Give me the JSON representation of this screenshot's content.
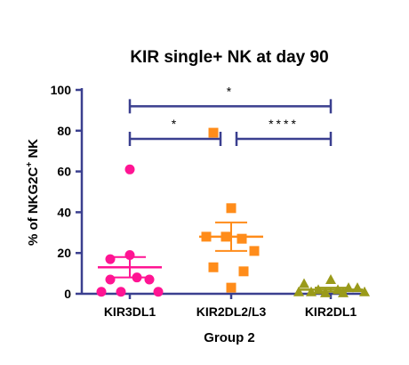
{
  "chart_data": {
    "type": "scatter",
    "title": "KIR single+ NK  at day 90",
    "xlabel": "Group 2",
    "ylabel": "% of NKG2C",
    "ylabel_sup": "+",
    "ylabel_suffix": " NK",
    "ylim": [
      0,
      100
    ],
    "yticks": [
      0,
      20,
      40,
      60,
      80,
      100
    ],
    "grid": false,
    "categories": [
      "KIR3DL1",
      "KIR2DL2/L3",
      "KIR2DL1"
    ],
    "series": [
      {
        "category": "KIR3DL1",
        "marker": "circle",
        "color": "#ff1493",
        "values": [
          61,
          19,
          17,
          8,
          7,
          7,
          1,
          1,
          1
        ],
        "mean": 13,
        "sem": [
          8,
          18
        ]
      },
      {
        "category": "KIR2DL2/L3",
        "marker": "square",
        "color": "#ff8c1a",
        "values": [
          79,
          42,
          28,
          28,
          27,
          21,
          13,
          11,
          3
        ],
        "mean": 28,
        "sem": [
          21,
          35
        ]
      },
      {
        "category": "KIR2DL1",
        "marker": "triangle",
        "color": "#9a9a1a",
        "values": [
          7,
          5,
          3,
          3,
          2,
          2,
          1,
          1,
          1,
          0.5,
          0.5
        ],
        "mean": 2,
        "sem": [
          1,
          3
        ]
      }
    ],
    "significance": [
      {
        "from": 0,
        "to": 2,
        "label": "*",
        "y": 92
      },
      {
        "from": 0,
        "to": 1,
        "label": "*",
        "y": 76
      },
      {
        "from": 1,
        "to": 2,
        "label": "****",
        "y": 76
      }
    ]
  }
}
